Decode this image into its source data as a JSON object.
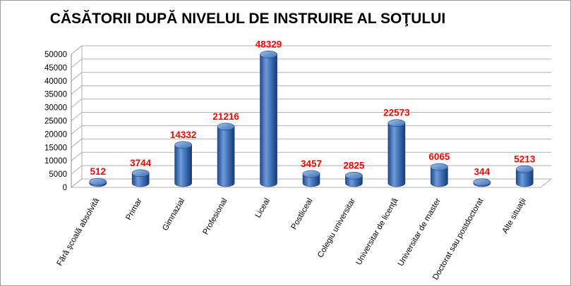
{
  "chart_data": {
    "type": "bar",
    "title": "CĂSĂTORII DUPĂ NIVELUL DE INSTRUIRE  AL SOŢULUI",
    "categories": [
      "Fără şcoală absolvită",
      "Primar",
      "Gimnazial",
      "Profesional",
      "Liceal",
      "Postliceal",
      "Colegiu universitar",
      "Universitar de licenţă",
      "Universitar de master",
      "Doctorat sau postdoctorat",
      "Alte situaţii"
    ],
    "values": [
      512,
      3744,
      14332,
      21216,
      48329,
      3457,
      2825,
      22573,
      6065,
      344,
      5213
    ],
    "ylim": [
      0,
      50000
    ],
    "yticks": [
      0,
      5000,
      10000,
      15000,
      20000,
      25000,
      30000,
      35000,
      40000,
      45000,
      50000
    ],
    "xlabel": "",
    "ylabel": "",
    "grid": true,
    "legend": "none",
    "style": "3d-cylinder",
    "colors": {
      "bar": "#4a7cc4",
      "bar_dark": "#1f4a8c",
      "bar_light": "#9cc0ef",
      "data_label": "#ff0000",
      "grid": "#b0b0b0"
    }
  }
}
